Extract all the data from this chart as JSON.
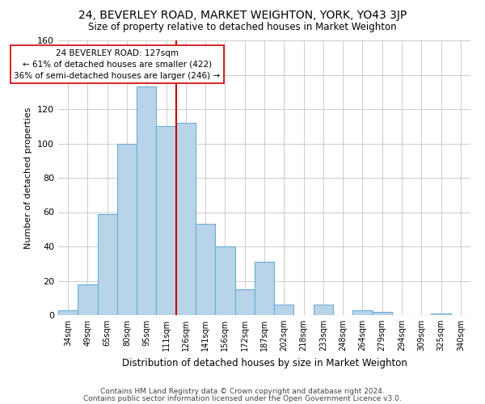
{
  "title": "24, BEVERLEY ROAD, MARKET WEIGHTON, YORK, YO43 3JP",
  "subtitle": "Size of property relative to detached houses in Market Weighton",
  "xlabel": "Distribution of detached houses by size in Market Weighton",
  "ylabel": "Number of detached properties",
  "bin_labels": [
    "34sqm",
    "49sqm",
    "65sqm",
    "80sqm",
    "95sqm",
    "111sqm",
    "126sqm",
    "141sqm",
    "156sqm",
    "172sqm",
    "187sqm",
    "202sqm",
    "218sqm",
    "233sqm",
    "248sqm",
    "264sqm",
    "279sqm",
    "294sqm",
    "309sqm",
    "325sqm",
    "340sqm"
  ],
  "bar_heights": [
    3,
    18,
    59,
    100,
    133,
    110,
    112,
    53,
    40,
    15,
    31,
    6,
    0,
    6,
    0,
    3,
    2,
    0,
    0,
    1,
    0
  ],
  "bar_color": "#b8d4e8",
  "bar_edge_color": "#6baed6",
  "vline_x_index": 6,
  "vline_color": "#cc0000",
  "annotation_title": "24 BEVERLEY ROAD: 127sqm",
  "annotation_line1": "← 61% of detached houses are smaller (422)",
  "annotation_line2": "36% of semi-detached houses are larger (246) →",
  "annotation_box_color": "#ffffff",
  "annotation_box_edge": "#cc0000",
  "ylim": [
    0,
    160
  ],
  "yticks": [
    0,
    20,
    40,
    60,
    80,
    100,
    120,
    140,
    160
  ],
  "footer_line1": "Contains HM Land Registry data © Crown copyright and database right 2024.",
  "footer_line2": "Contains public sector information licensed under the Open Government Licence v3.0.",
  "background_color": "#ffffff",
  "grid_color": "#cccccc"
}
